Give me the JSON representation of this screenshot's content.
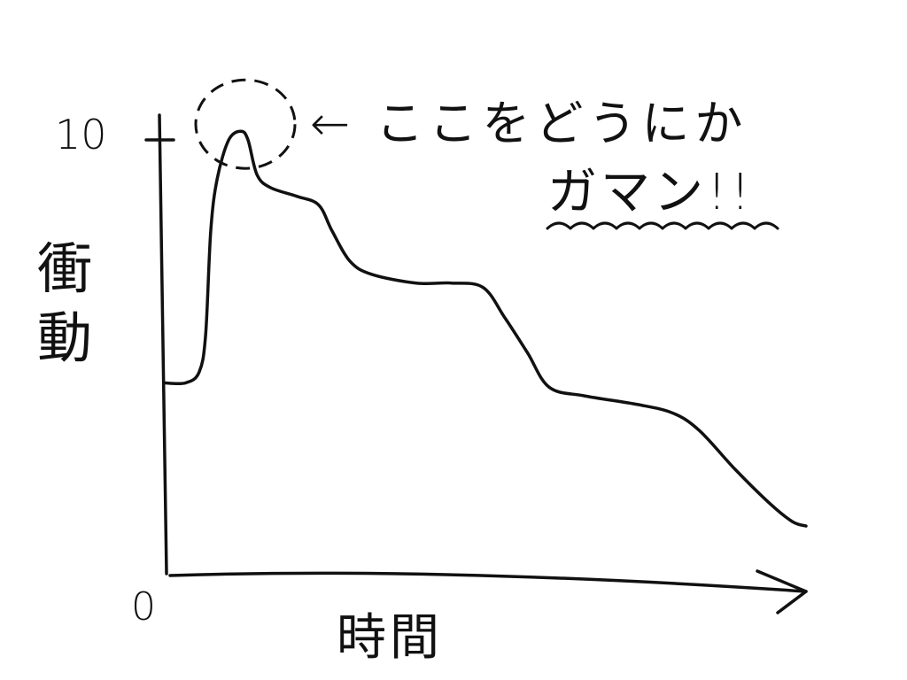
{
  "chart_data": {
    "type": "line",
    "title": "",
    "xlabel": "時間",
    "ylabel": "衝動",
    "ylim": [
      0,
      10
    ],
    "yticks": [
      "0",
      "10"
    ],
    "grid": false,
    "legend": "none",
    "line_color": "#111111",
    "x": [
      0,
      3.4,
      5.5,
      6.5,
      7.3,
      8.3,
      10.1,
      12,
      13.1,
      14.5,
      16.6,
      20.7,
      24.1,
      26.2,
      29,
      32.4,
      39.3,
      44.8,
      49.7,
      53.1,
      56.6,
      60,
      65.5,
      73.8,
      79.3,
      83.4,
      89,
      94.5,
      97.9,
      100
    ],
    "y": [
      4.4,
      4.4,
      4.65,
      5.5,
      7.9,
      9.1,
      10.0,
      10.2,
      10.0,
      9.2,
      8.9,
      8.7,
      8.5,
      7.9,
      7.2,
      6.9,
      6.7,
      6.7,
      6.6,
      5.9,
      5.1,
      4.3,
      4.1,
      3.9,
      3.7,
      3.3,
      2.4,
      1.6,
      1.2,
      1.1
    ],
    "annotation": {
      "arrow": "←",
      "line1": "ここをどうにか",
      "line2": "ガマン!!",
      "target": "peak",
      "marker": "dashed-circle",
      "underline": "wavy"
    }
  }
}
